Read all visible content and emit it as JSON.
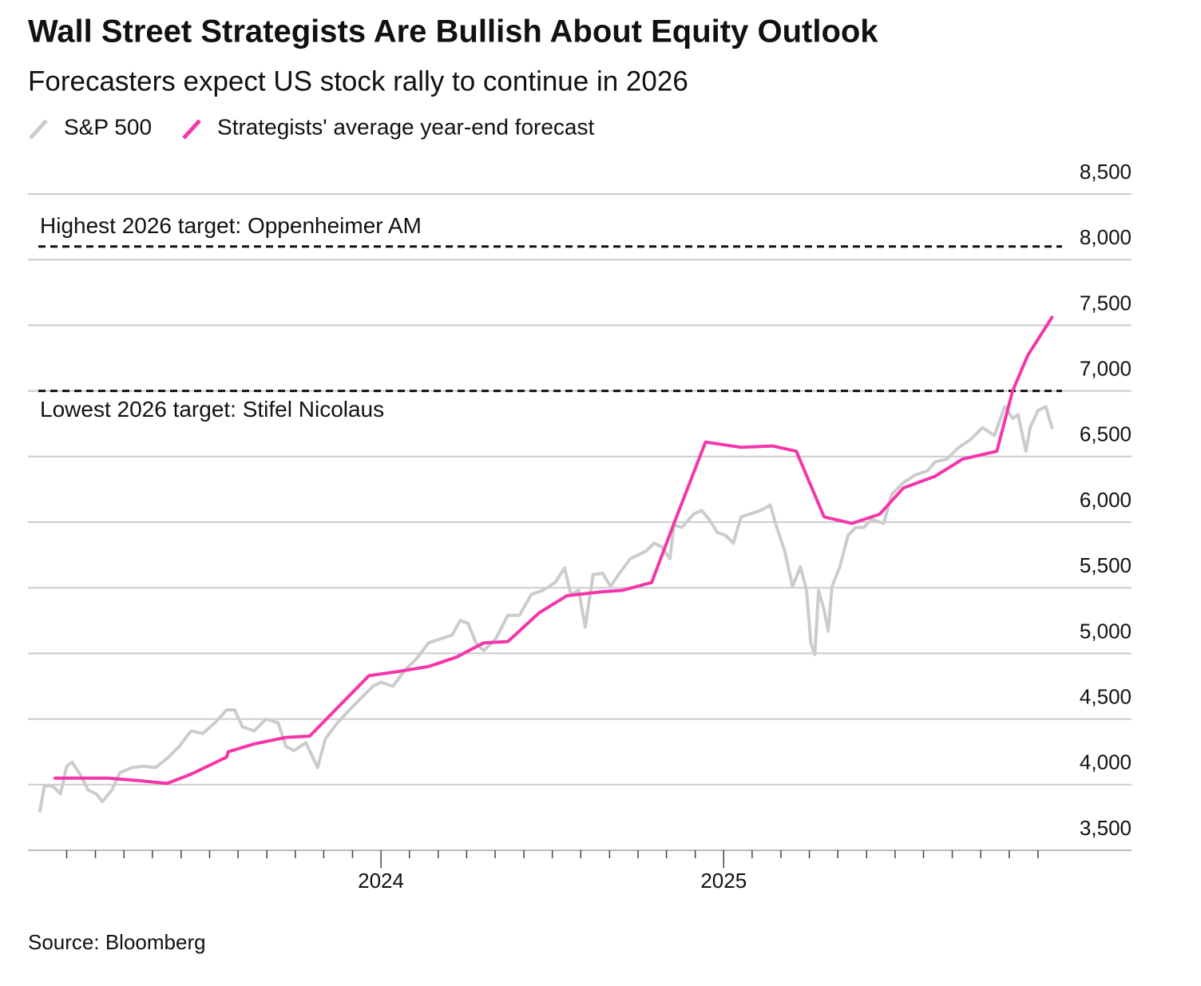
{
  "chart_data": {
    "type": "line",
    "title": "Wall Street Strategists Are Bullish About Equity Outlook",
    "subtitle": "Forecasters expect US stock rally to continue in 2026",
    "source": "Source: Bloomberg",
    "grid": true,
    "legend_position": "top-left",
    "xlim": [
      2022.97,
      2026.19
    ],
    "xticks": [
      2024,
      2025
    ],
    "xminorticks": [
      2023.083,
      2023.167,
      2023.25,
      2023.333,
      2023.417,
      2023.5,
      2023.583,
      2023.667,
      2023.75,
      2023.833,
      2023.917,
      2024.083,
      2024.167,
      2024.25,
      2024.333,
      2024.417,
      2024.5,
      2024.583,
      2024.667,
      2024.75,
      2024.833,
      2024.917,
      2025.083,
      2025.167,
      2025.25,
      2025.333,
      2025.417,
      2025.5,
      2025.583,
      2025.667,
      2025.75,
      2025.833,
      2025.917
    ],
    "ylim": [
      3500,
      8500
    ],
    "yticks": [
      {
        "value": 3500,
        "label": "3,500"
      },
      {
        "value": 4000,
        "label": "4,000"
      },
      {
        "value": 4500,
        "label": "4,500"
      },
      {
        "value": 5000,
        "label": "5,000"
      },
      {
        "value": 5500,
        "label": "5,500"
      },
      {
        "value": 6000,
        "label": "6,000"
      },
      {
        "value": 6500,
        "label": "6,500"
      },
      {
        "value": 7000,
        "label": "7,000"
      },
      {
        "value": 7500,
        "label": "7,500"
      },
      {
        "value": 8000,
        "label": "8,000"
      },
      {
        "value": 8500,
        "label": "8,500"
      }
    ],
    "reference_lines": [
      {
        "value": 8100,
        "label": "Highest 2026 target: Oppenheimer AM"
      },
      {
        "value": 7000,
        "label": "Lowest 2026 target: Stifel Nicolaus"
      }
    ],
    "series": [
      {
        "name": "S&P 500",
        "color": "#cccccc",
        "x": [
          2023.005,
          2023.018,
          2023.042,
          2023.065,
          2023.083,
          2023.099,
          2023.122,
          2023.145,
          2023.169,
          2023.187,
          2023.215,
          2023.238,
          2023.273,
          2023.307,
          2023.342,
          2023.376,
          2023.411,
          2023.446,
          2023.48,
          2023.515,
          2023.55,
          2023.573,
          2023.596,
          2023.63,
          2023.665,
          2023.7,
          2023.723,
          2023.746,
          2023.781,
          2023.815,
          2023.838,
          2023.873,
          2023.908,
          2023.942,
          2023.977,
          2024.0,
          2024.035,
          2024.069,
          2024.104,
          2024.139,
          2024.173,
          2024.208,
          2024.231,
          2024.254,
          2024.277,
          2024.3,
          2024.335,
          2024.37,
          2024.404,
          2024.439,
          2024.473,
          2024.508,
          2024.536,
          2024.554,
          2024.577,
          2024.596,
          2024.619,
          2024.647,
          2024.67,
          2024.693,
          2024.727,
          2024.751,
          2024.774,
          2024.797,
          2024.82,
          2024.843,
          2024.855,
          2024.878,
          2024.912,
          2024.935,
          2024.958,
          2024.982,
          2025.005,
          2025.028,
          2025.051,
          2025.074,
          2025.109,
          2025.136,
          2025.155,
          2025.178,
          2025.201,
          2025.224,
          2025.242,
          2025.254,
          2025.266,
          2025.277,
          2025.293,
          2025.305,
          2025.316,
          2025.339,
          2025.363,
          2025.386,
          2025.409,
          2025.432,
          2025.467,
          2025.49,
          2025.524,
          2025.559,
          2025.594,
          2025.617,
          2025.651,
          2025.686,
          2025.721,
          2025.755,
          2025.79,
          2025.82,
          2025.843,
          2025.859,
          2025.882,
          2025.894,
          2025.917,
          2025.94,
          2025.958
        ],
        "values": [
          3800,
          3990,
          3990,
          3930,
          4140,
          4170,
          4080,
          3960,
          3930,
          3870,
          3960,
          4090,
          4130,
          4140,
          4130,
          4200,
          4290,
          4410,
          4390,
          4470,
          4570,
          4570,
          4440,
          4410,
          4500,
          4470,
          4290,
          4260,
          4320,
          4130,
          4350,
          4470,
          4570,
          4660,
          4750,
          4780,
          4750,
          4870,
          4960,
          5080,
          5110,
          5140,
          5250,
          5230,
          5080,
          5020,
          5110,
          5290,
          5290,
          5450,
          5480,
          5540,
          5650,
          5450,
          5480,
          5200,
          5600,
          5610,
          5510,
          5600,
          5720,
          5750,
          5780,
          5840,
          5810,
          5720,
          5980,
          5960,
          6060,
          6090,
          6020,
          5920,
          5900,
          5840,
          6040,
          6060,
          6090,
          6130,
          5960,
          5780,
          5510,
          5660,
          5480,
          5080,
          4990,
          5480,
          5330,
          5170,
          5510,
          5660,
          5900,
          5960,
          5960,
          6020,
          5990,
          6210,
          6300,
          6360,
          6390,
          6460,
          6480,
          6570,
          6630,
          6720,
          6660,
          6880,
          6790,
          6820,
          6540,
          6720,
          6850,
          6880,
          6720
        ]
      },
      {
        "name": "Strategists' average year-end forecast",
        "color": "#f535aa",
        "x": [
          2023.049,
          2023.203,
          2023.296,
          2023.376,
          2023.446,
          2023.55,
          2023.554,
          2023.63,
          2023.723,
          2023.792,
          2023.965,
          2024.046,
          2024.139,
          2024.219,
          2024.3,
          2024.37,
          2024.462,
          2024.543,
          2024.647,
          2024.704,
          2024.79,
          2024.855,
          2024.947,
          2025.051,
          2025.143,
          2025.212,
          2025.293,
          2025.374,
          2025.455,
          2025.524,
          2025.617,
          2025.697,
          2025.797,
          2025.843,
          2025.887,
          2025.958
        ],
        "values": [
          4050,
          4050,
          4030,
          4010,
          4080,
          4210,
          4250,
          4310,
          4360,
          4370,
          4830,
          4860,
          4900,
          4970,
          5080,
          5090,
          5310,
          5440,
          5470,
          5480,
          5540,
          5990,
          6610,
          6570,
          6580,
          6540,
          6040,
          5990,
          6060,
          6260,
          6350,
          6480,
          6540,
          7000,
          7270,
          7560
        ]
      }
    ]
  }
}
